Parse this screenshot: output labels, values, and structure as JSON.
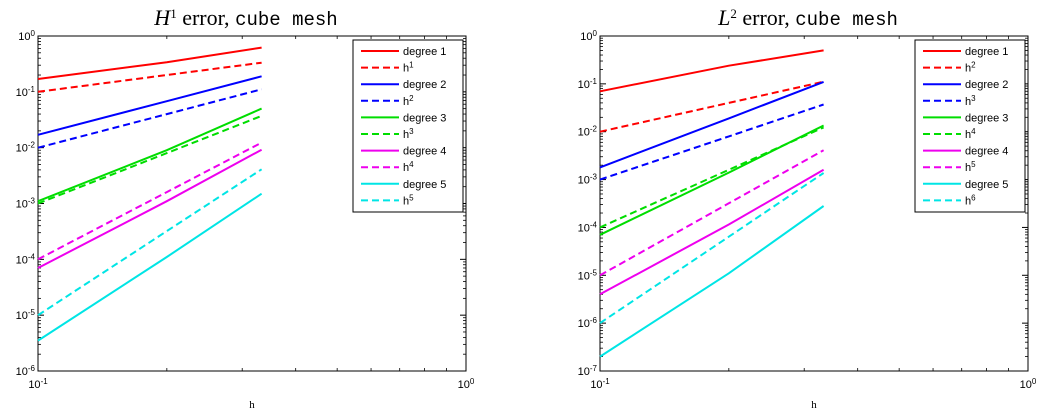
{
  "chart_data": [
    {
      "type": "line",
      "title": {
        "symbol": "H",
        "power": "1",
        "text": " error, ",
        "mono": "cube mesh"
      },
      "xlabel": "h",
      "xscale": "log",
      "yscale": "log",
      "xlim": [
        0.1,
        1
      ],
      "ylim": [
        1e-06,
        1
      ],
      "x": [
        0.1,
        0.2,
        0.333
      ],
      "grid": false,
      "legend_placement": "top-right",
      "xticks": [
        {
          "base": "10",
          "exp": "-1"
        },
        {
          "base": "10",
          "exp": "0"
        }
      ],
      "yticks": [
        {
          "base": "10",
          "exp": "0"
        },
        {
          "base": "10",
          "exp": "-1"
        },
        {
          "base": "10",
          "exp": "-2"
        },
        {
          "base": "10",
          "exp": "-3"
        },
        {
          "base": "10",
          "exp": "-4"
        },
        {
          "base": "10",
          "exp": "-5"
        },
        {
          "base": "10",
          "exp": "-6"
        }
      ],
      "series": [
        {
          "name": "degree 1",
          "label_base": "degree 1",
          "label_sup": "",
          "color": "#ff0000",
          "dash": false,
          "values": [
            0.17,
            0.34,
            0.62
          ]
        },
        {
          "name": "h1",
          "label_base": "h",
          "label_sup": "1",
          "color": "#ff0000",
          "dash": true,
          "values": [
            0.1,
            0.2,
            0.333
          ]
        },
        {
          "name": "degree 2",
          "label_base": "degree 2",
          "label_sup": "",
          "color": "#0000ff",
          "dash": false,
          "values": [
            0.017,
            0.068,
            0.19
          ]
        },
        {
          "name": "h2",
          "label_base": "h",
          "label_sup": "2",
          "color": "#0000ff",
          "dash": true,
          "values": [
            0.01,
            0.04,
            0.111
          ]
        },
        {
          "name": "degree 3",
          "label_base": "degree 3",
          "label_sup": "",
          "color": "#00dd00",
          "dash": false,
          "values": [
            0.0011,
            0.009,
            0.05
          ]
        },
        {
          "name": "h3",
          "label_base": "h",
          "label_sup": "3",
          "color": "#00dd00",
          "dash": true,
          "values": [
            0.001,
            0.008,
            0.037
          ]
        },
        {
          "name": "degree 4",
          "label_base": "degree 4",
          "label_sup": "",
          "color": "#ee00ee",
          "dash": false,
          "values": [
            7e-05,
            0.0011,
            0.0092
          ]
        },
        {
          "name": "h4",
          "label_base": "h",
          "label_sup": "4",
          "color": "#ee00ee",
          "dash": true,
          "values": [
            0.0001,
            0.0016,
            0.0123
          ]
        },
        {
          "name": "degree 5",
          "label_base": "degree 5",
          "label_sup": "",
          "color": "#00e5e5",
          "dash": false,
          "values": [
            3.5e-06,
            0.00011,
            0.0015
          ]
        },
        {
          "name": "h5",
          "label_base": "h",
          "label_sup": "5",
          "color": "#00e5e5",
          "dash": true,
          "values": [
            1e-05,
            0.00032,
            0.0041
          ]
        }
      ]
    },
    {
      "type": "line",
      "title": {
        "symbol": "L",
        "power": "2",
        "text": " error, ",
        "mono": "cube mesh"
      },
      "xlabel": "h",
      "xscale": "log",
      "yscale": "log",
      "xlim": [
        0.1,
        1
      ],
      "ylim": [
        1e-07,
        1
      ],
      "x": [
        0.1,
        0.2,
        0.333
      ],
      "grid": false,
      "legend_placement": "top-right",
      "xticks": [
        {
          "base": "10",
          "exp": "-1"
        },
        {
          "base": "10",
          "exp": "0"
        }
      ],
      "yticks": [
        {
          "base": "10",
          "exp": "0"
        },
        {
          "base": "10",
          "exp": "-1"
        },
        {
          "base": "10",
          "exp": "-2"
        },
        {
          "base": "10",
          "exp": "-3"
        },
        {
          "base": "10",
          "exp": "-4"
        },
        {
          "base": "10",
          "exp": "-5"
        },
        {
          "base": "10",
          "exp": "-6"
        },
        {
          "base": "10",
          "exp": "-7"
        }
      ],
      "series": [
        {
          "name": "degree 1",
          "label_base": "degree 1",
          "label_sup": "",
          "color": "#ff0000",
          "dash": false,
          "values": [
            0.07,
            0.24,
            0.5
          ]
        },
        {
          "name": "h2",
          "label_base": "h",
          "label_sup": "2",
          "color": "#ff0000",
          "dash": true,
          "values": [
            0.01,
            0.04,
            0.111
          ]
        },
        {
          "name": "degree 2",
          "label_base": "degree 2",
          "label_sup": "",
          "color": "#0000ff",
          "dash": false,
          "values": [
            0.0018,
            0.019,
            0.11
          ]
        },
        {
          "name": "h3",
          "label_base": "h",
          "label_sup": "3",
          "color": "#0000ff",
          "dash": true,
          "values": [
            0.001,
            0.008,
            0.037
          ]
        },
        {
          "name": "degree 3",
          "label_base": "degree 3",
          "label_sup": "",
          "color": "#00dd00",
          "dash": false,
          "values": [
            7e-05,
            0.0014,
            0.0135
          ]
        },
        {
          "name": "h4",
          "label_base": "h",
          "label_sup": "4",
          "color": "#00dd00",
          "dash": true,
          "values": [
            0.0001,
            0.0016,
            0.0123
          ]
        },
        {
          "name": "degree 4",
          "label_base": "degree 4",
          "label_sup": "",
          "color": "#ee00ee",
          "dash": false,
          "values": [
            4e-06,
            0.000115,
            0.0016
          ]
        },
        {
          "name": "h5",
          "label_base": "h",
          "label_sup": "5",
          "color": "#ee00ee",
          "dash": true,
          "values": [
            1e-05,
            0.00032,
            0.0041
          ]
        },
        {
          "name": "degree 5",
          "label_base": "degree 5",
          "label_sup": "",
          "color": "#00e5e5",
          "dash": false,
          "values": [
            2e-07,
            1.1e-05,
            0.00028
          ]
        },
        {
          "name": "h6",
          "label_base": "h",
          "label_sup": "6",
          "color": "#00e5e5",
          "dash": true,
          "values": [
            1e-06,
            6.4e-05,
            0.00137
          ]
        }
      ]
    }
  ]
}
